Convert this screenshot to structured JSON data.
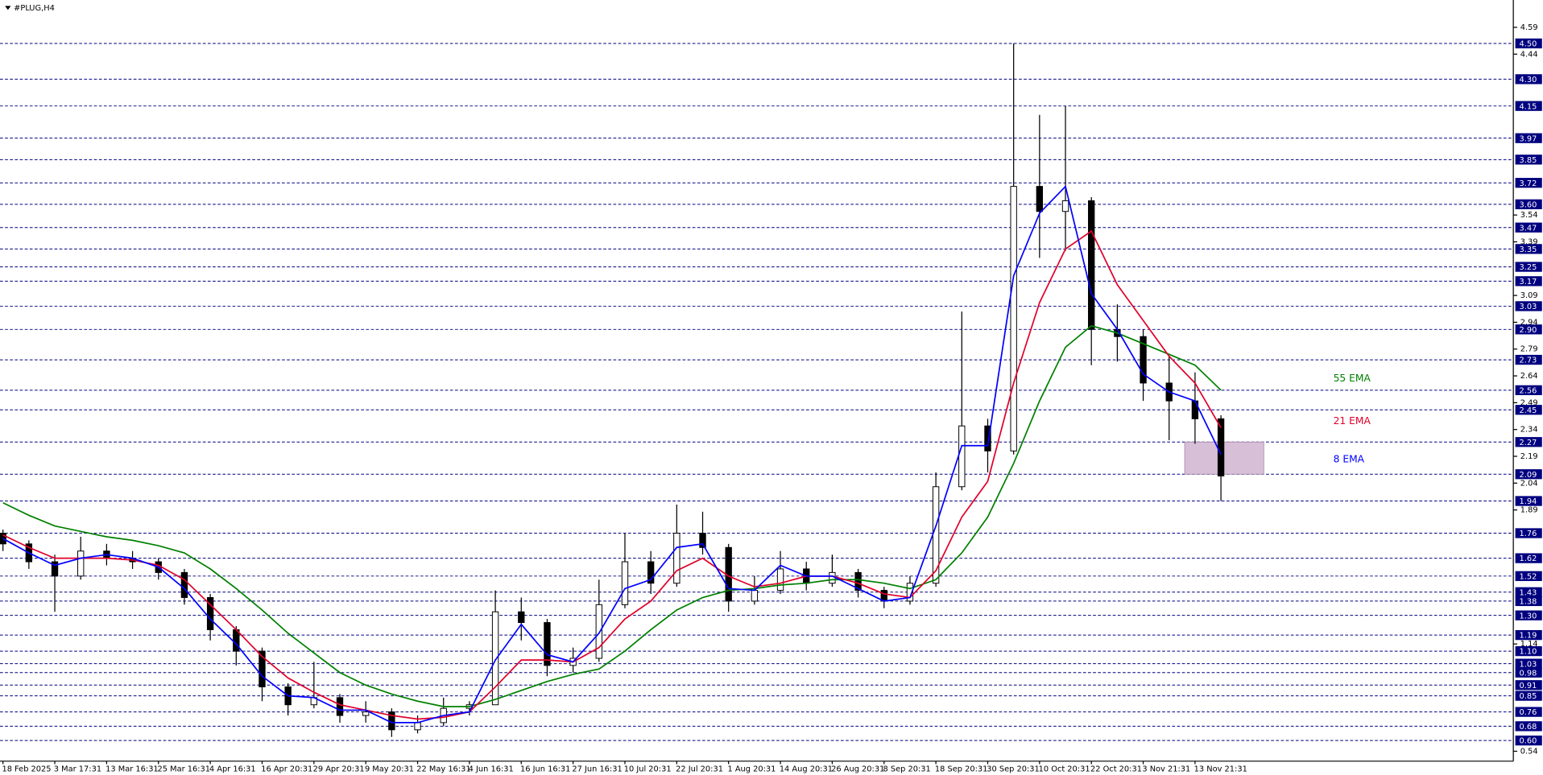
{
  "chart_data": {
    "type": "candlestick",
    "title": "#PLUG,H4",
    "categories": [
      "18 Feb 2025",
      null,
      "3 Mar 17:31",
      null,
      "13 Mar 16:31",
      null,
      "25 Mar 16:31",
      null,
      "4 Apr 16:31",
      null,
      "16 Apr 20:31",
      null,
      "29 Apr 20:31",
      null,
      "9 May 20:31",
      null,
      "22 May 16:31",
      null,
      "4 Jun 16:31",
      null,
      "16 Jun 16:31",
      null,
      "27 Jun 16:31",
      null,
      "10 Jul 20:31",
      null,
      "22 Jul 20:31",
      null,
      "1 Aug 20:31",
      null,
      "14 Aug 20:31",
      null,
      "26 Aug 20:31",
      null,
      "8 Sep 20:31",
      null,
      "18 Sep 20:31",
      null,
      "30 Sep 20:31",
      null,
      "10 Oct 20:31",
      null,
      "22 Oct 20:31",
      null,
      "3 Nov 21:31",
      null,
      "13 Nov 21:31",
      null
    ],
    "open": [
      1.76,
      1.7,
      1.6,
      1.52,
      1.66,
      1.62,
      1.6,
      1.54,
      1.4,
      1.22,
      1.1,
      0.9,
      0.8,
      0.84,
      0.74,
      0.76,
      0.66,
      0.7,
      0.78,
      0.8,
      1.32,
      1.26,
      1.02,
      1.06,
      1.36,
      1.6,
      1.48,
      1.76,
      1.68,
      1.38,
      1.44,
      1.56,
      1.48,
      1.54,
      1.44,
      1.38,
      1.48,
      2.02,
      2.36,
      2.22,
      3.7,
      3.56,
      3.62,
      2.9,
      2.86,
      2.6,
      2.5,
      2.4
    ],
    "high": [
      1.78,
      1.72,
      1.64,
      1.74,
      1.7,
      1.66,
      1.62,
      1.56,
      1.42,
      1.24,
      1.12,
      0.92,
      1.04,
      0.86,
      0.82,
      0.78,
      0.74,
      0.84,
      0.82,
      1.44,
      1.4,
      1.28,
      1.12,
      1.5,
      1.76,
      1.66,
      1.92,
      1.88,
      1.7,
      1.52,
      1.66,
      1.6,
      1.64,
      1.56,
      1.46,
      1.52,
      2.1,
      3.0,
      2.4,
      4.5,
      4.1,
      4.15,
      3.64,
      3.04,
      2.9,
      2.75,
      2.66,
      2.42
    ],
    "low": [
      1.66,
      1.56,
      1.32,
      1.5,
      1.58,
      1.56,
      1.5,
      1.36,
      1.16,
      1.02,
      0.82,
      0.74,
      0.78,
      0.7,
      0.7,
      0.62,
      0.64,
      0.68,
      0.74,
      0.8,
      1.16,
      0.96,
      0.98,
      1.04,
      1.34,
      1.42,
      1.46,
      1.64,
      1.32,
      1.36,
      1.42,
      1.44,
      1.46,
      1.4,
      1.34,
      1.36,
      1.46,
      2.0,
      2.1,
      2.2,
      3.3,
      3.34,
      2.7,
      2.72,
      2.5,
      2.28,
      2.26,
      1.94
    ],
    "close": [
      1.7,
      1.6,
      1.52,
      1.66,
      1.62,
      1.6,
      1.54,
      1.4,
      1.22,
      1.1,
      0.9,
      0.8,
      0.84,
      0.74,
      0.76,
      0.66,
      0.7,
      0.78,
      0.8,
      1.32,
      1.26,
      1.02,
      1.06,
      1.36,
      1.6,
      1.48,
      1.76,
      1.68,
      1.38,
      1.44,
      1.56,
      1.48,
      1.54,
      1.44,
      1.38,
      1.48,
      2.02,
      2.36,
      2.22,
      3.7,
      3.56,
      3.62,
      2.9,
      2.86,
      2.6,
      2.5,
      2.4,
      2.08
    ],
    "series": [
      {
        "name": "55 EMA",
        "color": "#008000",
        "values": [
          1.93,
          1.86,
          1.8,
          1.77,
          1.74,
          1.72,
          1.69,
          1.65,
          1.56,
          1.45,
          1.33,
          1.2,
          1.09,
          0.98,
          0.91,
          0.86,
          0.82,
          0.79,
          0.79,
          0.83,
          0.88,
          0.93,
          0.97,
          1.0,
          1.1,
          1.22,
          1.33,
          1.4,
          1.44,
          1.45,
          1.47,
          1.48,
          1.5,
          1.5,
          1.48,
          1.45,
          1.5,
          1.65,
          1.85,
          2.15,
          2.5,
          2.8,
          2.92,
          2.88,
          2.82,
          2.76,
          2.7,
          2.56
        ]
      },
      {
        "name": "21 EMA",
        "color": "#e0002a",
        "values": [
          1.75,
          1.68,
          1.62,
          1.62,
          1.62,
          1.61,
          1.58,
          1.5,
          1.36,
          1.22,
          1.07,
          0.95,
          0.87,
          0.8,
          0.77,
          0.74,
          0.72,
          0.73,
          0.76,
          0.9,
          1.05,
          1.05,
          1.04,
          1.12,
          1.28,
          1.38,
          1.55,
          1.62,
          1.52,
          1.46,
          1.48,
          1.52,
          1.52,
          1.48,
          1.42,
          1.4,
          1.55,
          1.85,
          2.05,
          2.6,
          3.05,
          3.35,
          3.45,
          3.15,
          2.95,
          2.75,
          2.6,
          2.35
        ]
      },
      {
        "name": "8 EMA",
        "color": "#0000ff",
        "values": [
          1.73,
          1.65,
          1.58,
          1.62,
          1.64,
          1.62,
          1.57,
          1.45,
          1.28,
          1.14,
          0.96,
          0.85,
          0.84,
          0.77,
          0.77,
          0.7,
          0.7,
          0.74,
          0.76,
          1.05,
          1.25,
          1.08,
          1.04,
          1.2,
          1.45,
          1.5,
          1.68,
          1.7,
          1.45,
          1.44,
          1.58,
          1.52,
          1.52,
          1.45,
          1.38,
          1.4,
          1.8,
          2.25,
          2.25,
          3.2,
          3.55,
          3.7,
          3.1,
          2.9,
          2.65,
          2.55,
          2.5,
          2.2
        ]
      }
    ],
    "zone": {
      "top": 2.27,
      "bottom": 2.09,
      "color": "#d8bfd8"
    },
    "ylim": [
      0.49,
      4.66
    ],
    "yticks": [
      4.59,
      4.44,
      3.54,
      3.39,
      3.09,
      2.94,
      2.79,
      2.64,
      2.49,
      2.34,
      2.19,
      2.04,
      1.89,
      1.14,
      0.54
    ],
    "levels": [
      {
        "value": 4.5,
        "label": "4.50"
      },
      {
        "value": 4.3,
        "label": "4.30"
      },
      {
        "value": 4.15,
        "label": "4.15"
      },
      {
        "value": 3.97,
        "label": "3.97"
      },
      {
        "value": 3.85,
        "label": "3.85"
      },
      {
        "value": 3.72,
        "label": "3.72"
      },
      {
        "value": 3.6,
        "label": "3.60"
      },
      {
        "value": 3.47,
        "label": "3.47"
      },
      {
        "value": 3.35,
        "label": "3.35"
      },
      {
        "value": 3.25,
        "label": "3.25"
      },
      {
        "value": 3.17,
        "label": "3.17"
      },
      {
        "value": 3.03,
        "label": "3.03"
      },
      {
        "value": 2.9,
        "label": "2.90"
      },
      {
        "value": 2.73,
        "label": "2.73"
      },
      {
        "value": 2.56,
        "label": "2.56"
      },
      {
        "value": 2.45,
        "label": "2.45"
      },
      {
        "value": 2.27,
        "label": "2.27"
      },
      {
        "value": 2.09,
        "label": "2.09"
      },
      {
        "value": 1.94,
        "label": "1.94"
      },
      {
        "value": 1.76,
        "label": "1.76"
      },
      {
        "value": 1.62,
        "label": "1.62"
      },
      {
        "value": 1.52,
        "label": "1.52"
      },
      {
        "value": 1.43,
        "label": "1.43"
      },
      {
        "value": 1.38,
        "label": "1.38"
      },
      {
        "value": 1.3,
        "label": "1.30"
      },
      {
        "value": 1.19,
        "label": "1.19"
      },
      {
        "value": 1.1,
        "label": "1.10"
      },
      {
        "value": 1.03,
        "label": "1.03"
      },
      {
        "value": 0.98,
        "label": "0.98"
      },
      {
        "value": 0.91,
        "label": "0.91"
      },
      {
        "value": 0.85,
        "label": "0.85"
      },
      {
        "value": 0.76,
        "label": "0.76"
      },
      {
        "value": 0.68,
        "label": "0.68"
      },
      {
        "value": 0.6,
        "label": "0.60"
      }
    ],
    "level_color": "#000080"
  }
}
